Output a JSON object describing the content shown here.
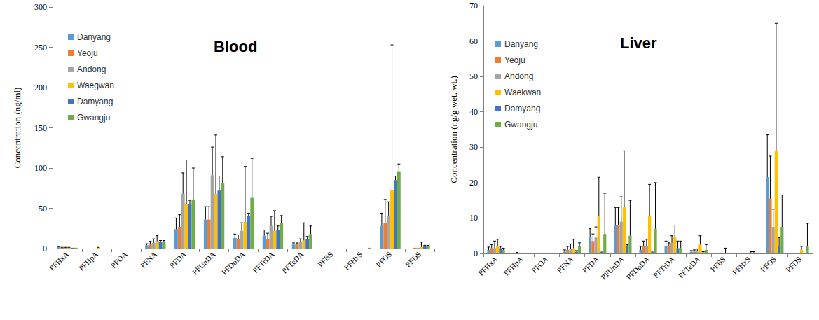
{
  "chart_data": [
    {
      "type": "bar",
      "title": "Blood",
      "y_label": "Concentration (ng/ml)",
      "categories": [
        "PFHxA",
        "PFHpA",
        "PFOA",
        "PFNA",
        "PFDA",
        "PFUnDA",
        "PFDoDA",
        "PFTrDA",
        "PFTeDA",
        "PFBS",
        "PFHxS",
        "PFOS",
        "PFDS"
      ],
      "series": [
        {
          "name": "Danyang",
          "color": "#5B9BD5",
          "values": [
            2,
            0,
            0,
            4,
            24,
            36,
            13,
            16,
            5,
            0,
            0,
            28,
            0
          ],
          "errors": [
            0.5,
            0,
            0,
            2,
            14,
            16,
            5,
            7,
            2,
            0,
            0,
            16,
            0
          ]
        },
        {
          "name": "Yeoju",
          "color": "#ED7D31",
          "values": [
            1,
            0,
            0,
            5,
            27,
            36,
            12,
            12,
            5,
            0,
            0,
            32,
            1
          ],
          "errors": [
            0.5,
            0,
            0,
            4,
            15,
            16,
            5,
            7,
            2,
            0,
            0,
            29,
            0
          ]
        },
        {
          "name": "Andong",
          "color": "#A5A5A5",
          "values": [
            1,
            0,
            0,
            7,
            68,
            91,
            22,
            28,
            8,
            0,
            0,
            41,
            1
          ],
          "errors": [
            0.5,
            0,
            0,
            5,
            26,
            35,
            10,
            12,
            4,
            0,
            0,
            17,
            0
          ]
        },
        {
          "name": "Waegwan",
          "color": "#FFC000",
          "values": [
            1,
            1,
            0,
            9,
            55,
            68,
            33,
            22,
            10,
            0,
            0,
            73,
            2
          ],
          "errors": [
            0.5,
            0.5,
            0,
            7,
            55,
            73,
            69,
            25,
            22,
            0,
            0,
            180,
            6
          ]
        },
        {
          "name": "Damyang",
          "color": "#4472C4",
          "values": [
            1,
            0,
            0,
            8,
            55,
            72,
            40,
            23,
            12,
            0,
            0,
            85,
            3
          ],
          "errors": [
            0,
            0,
            0,
            2,
            5,
            18,
            4,
            5,
            3,
            0,
            0,
            5,
            1
          ]
        },
        {
          "name": "Gwangju",
          "color": "#70AD47",
          "values": [
            1,
            0,
            0,
            8,
            61,
            81,
            63,
            32,
            18,
            0,
            1,
            96,
            3
          ],
          "errors": [
            0,
            0,
            0,
            2,
            39,
            33,
            49,
            9,
            10,
            0,
            0,
            9,
            1
          ]
        }
      ],
      "ylim": [
        0,
        300
      ],
      "yticks": [
        0,
        50,
        100,
        150,
        200,
        250,
        300
      ],
      "grid": false,
      "legend": "upper left"
    },
    {
      "type": "bar",
      "title": "Liver",
      "y_label": "Concentration (ng/g wet. wt.)",
      "categories": [
        "PFHxA",
        "PFHpA",
        "PFOA",
        "PFNA",
        "PFDA",
        "PFUnDA",
        "PFDoDA",
        "PFTrDA",
        "PFTeDA",
        "PFBS",
        "PFHxS",
        "PFOS",
        "PFDS"
      ],
      "series": [
        {
          "name": "Danyang",
          "color": "#5B9BD5",
          "values": [
            1,
            0,
            0,
            0.5,
            4.5,
            8,
            1,
            2,
            0.5,
            0,
            0,
            21.5,
            0
          ],
          "errors": [
            0.8,
            0,
            0,
            0.5,
            2.5,
            5,
            1,
            1.5,
            0.3,
            0,
            0,
            12,
            0
          ]
        },
        {
          "name": "Yeoju",
          "color": "#ED7D31",
          "values": [
            1.5,
            0,
            0,
            1,
            3.5,
            8,
            2,
            2,
            0.5,
            0,
            0,
            15.5,
            0
          ],
          "errors": [
            1,
            0.3,
            0,
            1,
            2,
            5,
            1.5,
            1,
            0.5,
            0,
            0,
            12,
            0
          ]
        },
        {
          "name": "Andong",
          "color": "#A5A5A5",
          "values": [
            1.5,
            0,
            0,
            1.2,
            4.5,
            9,
            2,
            3,
            0.8,
            0,
            0,
            7.5,
            0
          ],
          "errors": [
            2,
            0,
            0,
            1.5,
            3,
            7,
            2,
            2,
            0.5,
            0,
            0,
            5,
            0
          ]
        },
        {
          "name": "Waekwan",
          "color": "#FFC000",
          "values": [
            2,
            0,
            0,
            1.5,
            10.5,
            13,
            10.5,
            4.5,
            2.5,
            0,
            0,
            29,
            1
          ],
          "errors": [
            2,
            0,
            0,
            2.5,
            11,
            16,
            9,
            3.5,
            2.5,
            1.5,
            0.5,
            36,
            1
          ]
        },
        {
          "name": "Damyang",
          "color": "#4472C4",
          "values": [
            1.5,
            0,
            0,
            0.5,
            0.5,
            2,
            0.5,
            1.5,
            0.3,
            0,
            0,
            2,
            0
          ],
          "errors": [
            0.5,
            0,
            0,
            0.3,
            0.2,
            0.5,
            0.2,
            2,
            0.2,
            0,
            0.5,
            2.5,
            0
          ]
        },
        {
          "name": "Gwangju",
          "color": "#70AD47",
          "values": [
            1,
            0,
            0,
            2,
            5.5,
            5,
            7,
            1.5,
            1,
            0,
            0,
            7.5,
            2
          ],
          "errors": [
            0.5,
            0,
            0,
            1,
            11.5,
            10,
            13,
            2,
            1.5,
            0,
            0,
            9,
            6.5
          ]
        }
      ],
      "ylim": [
        0,
        70
      ],
      "yticks": [
        0,
        10,
        20,
        30,
        40,
        50,
        60,
        70
      ],
      "grid": false,
      "legend": "upper left"
    }
  ]
}
